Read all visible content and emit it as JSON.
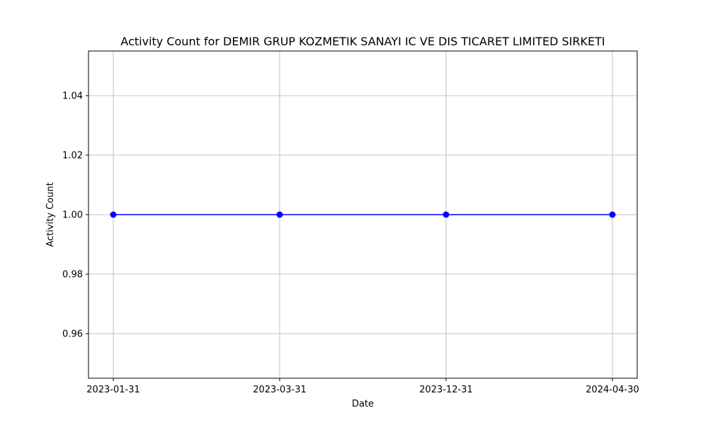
{
  "chart_data": {
    "type": "line",
    "title": "Activity Count for DEMIR GRUP KOZMETIK SANAYI IC VE DIS TICARET LIMITED SIRKETI",
    "xlabel": "Date",
    "ylabel": "Activity Count",
    "categories": [
      "2023-01-31",
      "2023-03-31",
      "2023-12-31",
      "2024-04-30"
    ],
    "series": [
      {
        "values": [
          1,
          1,
          1,
          1
        ],
        "color": "#0000ff",
        "marker": "circle"
      }
    ],
    "ylim": [
      0.945,
      1.055
    ],
    "yticks": [
      0.96,
      0.98,
      1.0,
      1.02,
      1.04
    ],
    "ytick_labels": [
      "0.96",
      "0.98",
      "1.00",
      "1.02",
      "1.04"
    ],
    "grid": true
  }
}
